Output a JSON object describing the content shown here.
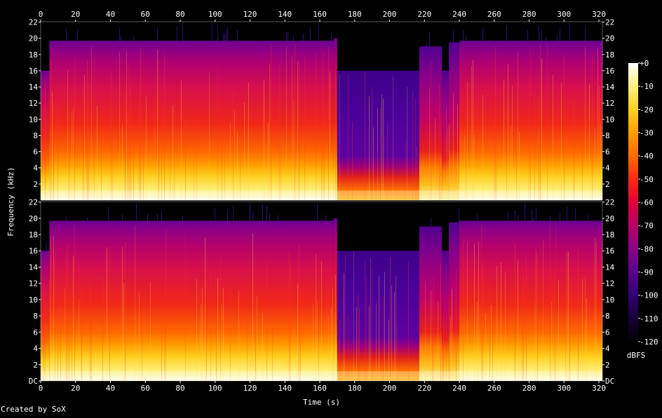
{
  "chart_data": {
    "type": "heatmap",
    "subtype": "spectrogram",
    "channels": 2,
    "xlabel": "Time (s)",
    "ylabel": "Frequency (kHz)",
    "x_ticks": [
      "0",
      "20",
      "40",
      "60",
      "80",
      "100",
      "120",
      "140",
      "160",
      "180",
      "200",
      "220",
      "240",
      "260",
      "280",
      "300",
      "320"
    ],
    "xlim": [
      0,
      322
    ],
    "y_ticks_top": [
      "2",
      "4",
      "6",
      "8",
      "10",
      "12",
      "14",
      "16",
      "18",
      "20",
      "22"
    ],
    "y_ticks_bottom": [
      "DC",
      "2",
      "4",
      "6",
      "8",
      "10",
      "12",
      "14",
      "16",
      "18",
      "20",
      "22"
    ],
    "ylim_khz": [
      0,
      22.05
    ],
    "colorbar": {
      "label": "dBFS",
      "ticks": [
        "+0",
        "-10",
        "-20",
        "-30",
        "-40",
        "-50",
        "-60",
        "-70",
        "-80",
        "-90",
        "-100",
        "-110",
        "-120"
      ],
      "range": [
        -120,
        0
      ]
    },
    "segments": [
      {
        "t0": 0,
        "t1": 5,
        "cutoff_khz": 16.0,
        "level": "high"
      },
      {
        "t0": 5,
        "t1": 168,
        "cutoff_khz": 19.7,
        "level": "high"
      },
      {
        "t0": 168,
        "t1": 170,
        "cutoff_khz": 20.0,
        "level": "high"
      },
      {
        "t0": 170,
        "t1": 217,
        "cutoff_khz": 16.0,
        "level": "low"
      },
      {
        "t0": 217,
        "t1": 230,
        "cutoff_khz": 19.0,
        "level": "mid"
      },
      {
        "t0": 230,
        "t1": 234,
        "cutoff_khz": 16.0,
        "level": "mid"
      },
      {
        "t0": 234,
        "t1": 240,
        "cutoff_khz": 19.5,
        "level": "mid"
      },
      {
        "t0": 240,
        "t1": 322,
        "cutoff_khz": 19.7,
        "level": "high"
      }
    ],
    "colors": {
      "background": "#000000",
      "grid_text": "#ffffff",
      "scale": [
        "#000000",
        "#16003a",
        "#320070",
        "#5a0090",
        "#8a0088",
        "#b80066",
        "#e0003a",
        "#ff2a10",
        "#ff6a00",
        "#ffa000",
        "#ffd020",
        "#fff080",
        "#ffffff"
      ]
    }
  },
  "footer": {
    "credit": "Created by SoX"
  }
}
